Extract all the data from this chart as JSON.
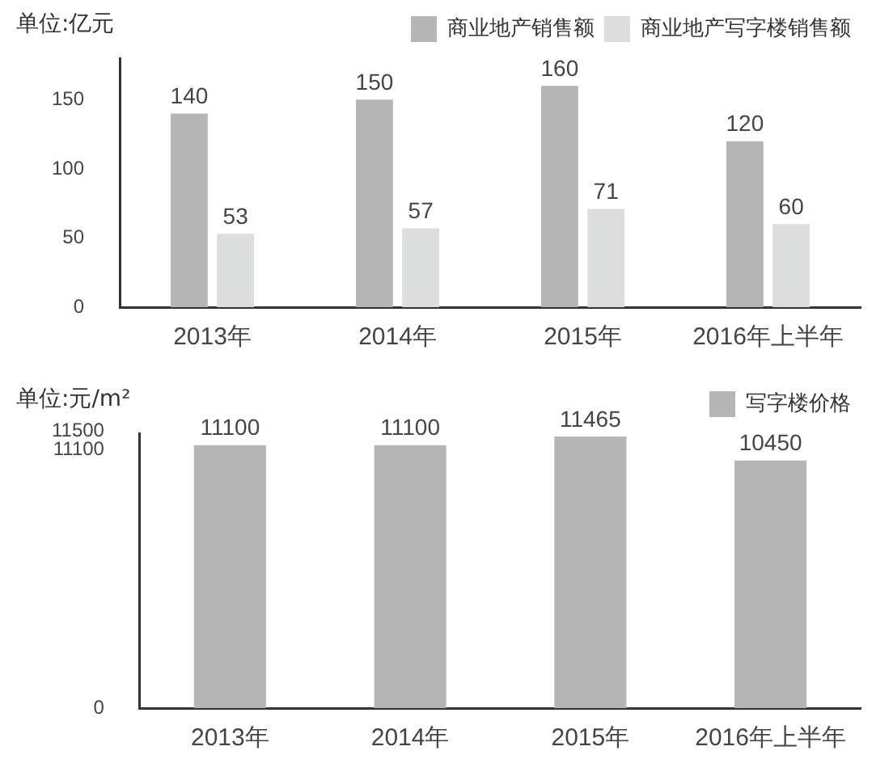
{
  "chart_data": [
    {
      "type": "bar",
      "ylabel": "单位:亿元",
      "categories": [
        "2013年",
        "2014年",
        "2015年",
        "2016年上半年"
      ],
      "series": [
        {
          "name": "商业地产销售额",
          "color": "#b5b5b6",
          "values": [
            140,
            150,
            160,
            120
          ]
        },
        {
          "name": "商业地产写字楼销售额",
          "color": "#dcdddd",
          "values": [
            53,
            57,
            71,
            60
          ]
        }
      ],
      "ylim": [
        0,
        180
      ],
      "yticks": [
        0,
        50,
        100,
        150
      ],
      "grid": false,
      "legend": "top right",
      "data_labels": true
    },
    {
      "type": "bar",
      "ylabel": "单位:元/m²",
      "categories": [
        "2013年",
        "2014年",
        "2015年",
        "2016年上半年"
      ],
      "series": [
        {
          "name": "写字楼价格",
          "color": "#b5b5b6",
          "values": [
            11100,
            11100,
            11465,
            10450
          ]
        }
      ],
      "ylim": [
        0,
        11600
      ],
      "yticks": [
        0,
        11100,
        11500
      ],
      "grid": false,
      "legend": "top right",
      "data_labels": true
    }
  ]
}
